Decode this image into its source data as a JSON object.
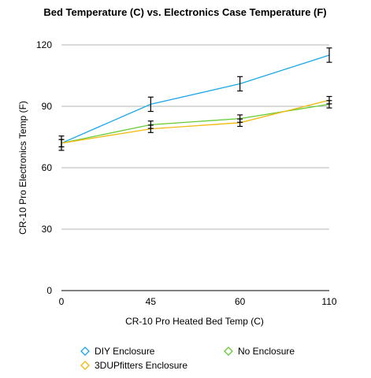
{
  "chart_data": {
    "type": "line",
    "title": "Bed Temperature (C) vs. Electronics Case Temperature (F)",
    "xlabel": "CR-10 Pro Heated Bed Temp (C)",
    "ylabel": "CR-10 Pro Electronics Temp (F)",
    "categories": [
      "0",
      "45",
      "60",
      "110"
    ],
    "ylim": [
      0,
      120
    ],
    "yticks": [
      0,
      30,
      60,
      90,
      120
    ],
    "grid": true,
    "legend_position": "bottom",
    "series": [
      {
        "name": "DIY Enclosure",
        "color": "#1aa7e8",
        "values": [
          72,
          91,
          101,
          115
        ],
        "error": [
          3.5,
          3.5,
          3.5,
          3.5
        ]
      },
      {
        "name": "No Enclosure",
        "color": "#66cc33",
        "values": [
          72,
          81,
          84,
          91
        ],
        "error": [
          1.8,
          1.8,
          1.8,
          1.8
        ]
      },
      {
        "name": "3DUPfitters Enclosure",
        "color": "#f2b90c",
        "values": [
          72,
          79,
          82,
          93
        ],
        "error": [
          1.8,
          1.8,
          1.8,
          1.8
        ]
      }
    ]
  }
}
